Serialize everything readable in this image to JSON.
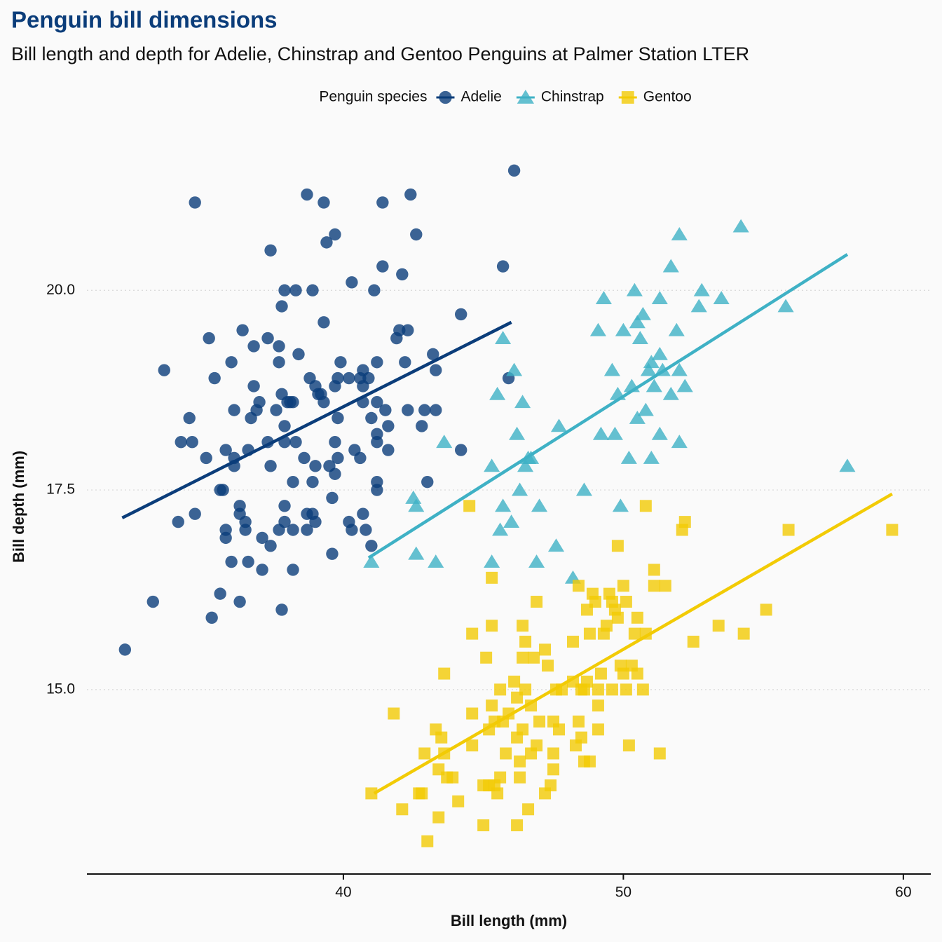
{
  "chart_data": {
    "type": "scatter",
    "title": "Penguin bill dimensions",
    "subtitle": "Bill length and depth for Adelie, Chinstrap and Gentoo Penguins at Palmer Station LTER",
    "x_label": "Bill length (mm)",
    "y_label": "Bill depth (mm)",
    "legend_title": "Penguin species",
    "legend": "top",
    "grid": "horizontal",
    "xlim": [
      30.84,
      60.98
    ],
    "ylim": [
      12.69,
      22.1
    ],
    "xticks": [
      40,
      50,
      60
    ],
    "yticks": [
      {
        "value": 15,
        "label": "15.0"
      },
      {
        "value": 17.5,
        "label": "17.5"
      },
      {
        "value": 20,
        "label": "20.0"
      }
    ],
    "series": [
      {
        "name": "Adelie",
        "color": "#0b3d7a",
        "shape": "circle",
        "x": [
          32.2,
          33.2,
          33.6,
          34.1,
          34.2,
          34.5,
          34.6,
          34.7,
          34.7,
          35.1,
          35.2,
          35.3,
          35.4,
          35.6,
          35.6,
          35.7,
          35.8,
          35.8,
          35.8,
          36.0,
          36.0,
          36.1,
          36.1,
          36.1,
          36.3,
          36.3,
          36.3,
          36.4,
          36.5,
          36.5,
          36.6,
          36.6,
          36.7,
          36.8,
          36.8,
          36.9,
          37.0,
          37.1,
          37.1,
          37.3,
          37.3,
          37.4,
          37.4,
          37.4,
          37.6,
          37.7,
          37.7,
          37.7,
          37.8,
          37.8,
          37.8,
          37.9,
          37.9,
          37.9,
          37.9,
          37.9,
          38.0,
          38.1,
          38.2,
          38.2,
          38.2,
          38.2,
          38.3,
          38.3,
          38.4,
          38.6,
          38.7,
          38.7,
          38.7,
          38.8,
          38.9,
          38.9,
          38.9,
          39.0,
          39.0,
          39.0,
          39.1,
          39.2,
          39.3,
          39.3,
          39.3,
          39.4,
          39.5,
          39.6,
          39.6,
          39.7,
          39.7,
          39.7,
          39.7,
          39.8,
          39.8,
          39.8,
          39.9,
          40.2,
          40.2,
          40.3,
          40.3,
          40.4,
          40.6,
          40.6,
          40.7,
          40.7,
          40.7,
          40.7,
          40.8,
          40.9,
          41.0,
          41.0,
          41.1,
          41.2,
          41.2,
          41.2,
          41.2,
          41.2,
          41.2,
          41.4,
          41.4,
          41.5,
          41.6,
          41.6,
          41.9,
          42.0,
          42.1,
          42.2,
          42.3,
          42.3,
          42.4,
          42.6,
          42.8,
          42.9,
          43.0,
          43.2,
          43.3,
          43.3,
          44.2,
          44.2,
          45.7,
          45.9,
          46.1
        ],
        "values": [
          15.5,
          16.1,
          19.0,
          17.1,
          18.1,
          18.4,
          18.1,
          21.1,
          17.2,
          17.9,
          19.4,
          15.9,
          18.9,
          16.2,
          17.5,
          17.5,
          18.0,
          17.0,
          16.9,
          16.6,
          19.1,
          18.5,
          17.9,
          17.8,
          17.3,
          17.2,
          16.1,
          19.5,
          17.0,
          17.1,
          18.0,
          16.6,
          18.4,
          19.3,
          18.8,
          18.5,
          18.6,
          16.9,
          16.5,
          18.1,
          19.4,
          20.5,
          17.8,
          16.8,
          18.5,
          19.3,
          19.1,
          17.0,
          19.8,
          18.7,
          16.0,
          20.0,
          18.3,
          18.1,
          17.3,
          17.1,
          18.6,
          18.6,
          17.0,
          16.5,
          18.6,
          17.6,
          20.0,
          18.1,
          19.2,
          17.9,
          21.2,
          17.2,
          17.0,
          18.9,
          20.0,
          17.6,
          17.2,
          18.8,
          17.8,
          17.1,
          18.7,
          18.7,
          21.1,
          19.6,
          18.6,
          20.6,
          17.8,
          17.4,
          16.7,
          20.7,
          17.7,
          18.8,
          18.1,
          18.4,
          17.9,
          18.9,
          19.1,
          18.9,
          17.1,
          20.1,
          17.0,
          18.0,
          17.9,
          18.9,
          18.8,
          19.0,
          18.6,
          17.2,
          17.0,
          18.9,
          18.4,
          16.8,
          20.0,
          19.1,
          18.6,
          18.2,
          18.1,
          17.6,
          17.5,
          21.1,
          20.3,
          18.5,
          18.3,
          18.0,
          19.4,
          19.5,
          20.2,
          19.1,
          19.5,
          18.5,
          21.2,
          20.7,
          18.3,
          18.5,
          17.6,
          19.2,
          19.0,
          18.5,
          19.7,
          18.0,
          20.3,
          18.9,
          21.5
        ],
        "trend": {
          "x": [
            32.1,
            46.0
          ],
          "values": [
            17.15,
            19.6
          ]
        }
      },
      {
        "name": "Chinstrap",
        "color": "#3fb1c5",
        "shape": "triangle",
        "x": [
          41.0,
          42.5,
          42.6,
          42.6,
          43.3,
          43.6,
          45.3,
          45.3,
          45.5,
          45.6,
          45.7,
          45.7,
          46.0,
          46.1,
          46.2,
          46.3,
          46.4,
          46.5,
          46.6,
          46.7,
          46.9,
          47.0,
          47.6,
          47.7,
          48.2,
          48.6,
          49.1,
          49.2,
          49.3,
          49.6,
          49.7,
          49.8,
          49.9,
          50.0,
          50.2,
          50.3,
          50.4,
          50.5,
          50.5,
          50.6,
          50.7,
          50.8,
          50.9,
          51.0,
          51.0,
          51.1,
          51.3,
          51.3,
          51.4,
          51.3,
          51.7,
          51.7,
          51.9,
          52.0,
          52.0,
          52.0,
          52.2,
          52.7,
          52.8,
          53.5,
          54.2,
          55.8,
          58.0
        ],
        "values": [
          16.6,
          17.4,
          17.3,
          16.7,
          16.6,
          18.1,
          17.8,
          16.6,
          18.7,
          17.0,
          19.4,
          17.3,
          17.1,
          19.0,
          18.2,
          17.5,
          18.6,
          17.8,
          17.9,
          17.9,
          16.6,
          17.3,
          16.8,
          18.3,
          16.4,
          17.5,
          19.5,
          18.2,
          19.9,
          19.0,
          18.2,
          18.7,
          17.3,
          19.5,
          17.9,
          18.8,
          20.0,
          18.4,
          19.6,
          19.4,
          19.7,
          18.5,
          19.0,
          17.9,
          19.1,
          18.8,
          19.2,
          18.2,
          19.0,
          19.9,
          18.7,
          20.3,
          19.5,
          18.1,
          19.0,
          20.7,
          18.8,
          19.8,
          20.0,
          19.9,
          20.8,
          19.8,
          17.8
        ],
        "trend": {
          "x": [
            40.9,
            58.0
          ],
          "values": [
            16.65,
            20.45
          ]
        }
      },
      {
        "name": "Gentoo",
        "color": "#f2cb05",
        "shape": "square",
        "x": [
          41.0,
          41.8,
          42.1,
          42.7,
          42.8,
          42.9,
          43.0,
          43.3,
          43.4,
          43.4,
          43.5,
          43.6,
          43.6,
          43.7,
          43.9,
          44.1,
          44.5,
          44.6,
          44.6,
          44.6,
          45.0,
          45.0,
          45.1,
          45.2,
          45.2,
          45.3,
          45.3,
          45.3,
          45.4,
          45.4,
          45.5,
          45.6,
          45.6,
          45.7,
          45.8,
          45.9,
          46.1,
          46.2,
          46.2,
          46.2,
          46.3,
          46.3,
          46.4,
          46.4,
          46.4,
          46.5,
          46.5,
          46.6,
          46.7,
          46.7,
          46.8,
          46.9,
          46.9,
          47.0,
          47.2,
          47.2,
          47.3,
          47.4,
          47.5,
          47.5,
          47.5,
          47.6,
          47.7,
          47.8,
          48.2,
          48.2,
          48.3,
          48.4,
          48.4,
          48.5,
          48.5,
          48.6,
          48.6,
          48.7,
          48.7,
          48.8,
          48.8,
          48.9,
          49.0,
          49.1,
          49.1,
          49.1,
          49.2,
          49.3,
          49.4,
          49.5,
          49.6,
          49.6,
          49.7,
          49.8,
          49.8,
          49.9,
          50.0,
          50.0,
          50.1,
          50.1,
          50.2,
          50.3,
          50.4,
          50.5,
          50.5,
          50.7,
          50.8,
          50.8,
          51.1,
          51.1,
          51.3,
          51.5,
          52.1,
          52.2,
          52.5,
          53.4,
          54.3,
          55.1,
          55.9,
          59.6
        ],
        "values": [
          13.7,
          14.7,
          13.5,
          13.7,
          13.7,
          14.2,
          13.1,
          14.5,
          13.4,
          14.0,
          14.4,
          14.2,
          15.2,
          13.9,
          13.9,
          13.6,
          17.3,
          15.7,
          14.7,
          14.3,
          13.3,
          13.8,
          15.4,
          14.5,
          13.8,
          16.4,
          15.8,
          14.8,
          13.8,
          14.6,
          13.7,
          15.0,
          13.9,
          14.6,
          14.2,
          14.7,
          15.1,
          14.9,
          13.3,
          14.4,
          14.1,
          13.9,
          15.8,
          15.4,
          14.5,
          15.6,
          15.0,
          13.5,
          14.8,
          14.2,
          15.4,
          16.1,
          14.3,
          14.6,
          15.5,
          13.7,
          15.3,
          13.8,
          14.6,
          14.2,
          14.0,
          15.0,
          14.5,
          15.0,
          15.1,
          15.6,
          14.3,
          16.3,
          14.6,
          14.4,
          15.0,
          15.0,
          14.1,
          16.0,
          15.1,
          14.1,
          15.7,
          16.2,
          16.1,
          14.8,
          15.0,
          14.5,
          15.2,
          15.7,
          15.8,
          16.2,
          15.0,
          16.1,
          16.0,
          16.8,
          15.9,
          15.3,
          16.3,
          15.2,
          15.0,
          16.1,
          14.3,
          15.3,
          15.7,
          15.9,
          15.2,
          15.0,
          15.7,
          17.3,
          16.5,
          16.3,
          14.2,
          16.3,
          17.0,
          17.1,
          15.6,
          15.8,
          15.7,
          16.0,
          17.0,
          17.0
        ],
        "trend": {
          "x": [
            41.1,
            59.6
          ],
          "values": [
            13.7,
            17.45
          ]
        }
      }
    ]
  }
}
